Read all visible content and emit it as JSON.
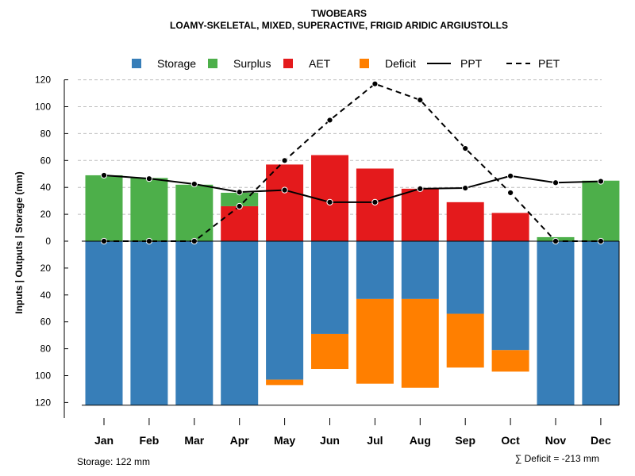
{
  "chart_data": {
    "type": "bar",
    "title": "TWOBEARS",
    "subtitle": "LOAMY-SKELETAL, MIXED, SUPERACTIVE, FRIGID ARIDIC ARGIUSTOLLS",
    "ylabel": "Inputs | Outputs | Storage    (mm)",
    "ylim": [
      -122,
      120
    ],
    "yticks": [
      {
        "value": 120,
        "label": "120"
      },
      {
        "value": 100,
        "label": "100"
      },
      {
        "value": 80,
        "label": "80"
      },
      {
        "value": 60,
        "label": "60"
      },
      {
        "value": 40,
        "label": "40"
      },
      {
        "value": 20,
        "label": "20"
      },
      {
        "value": 0,
        "label": "0"
      },
      {
        "value": -20,
        "label": "20"
      },
      {
        "value": -40,
        "label": "40"
      },
      {
        "value": -60,
        "label": "60"
      },
      {
        "value": -80,
        "label": "80"
      },
      {
        "value": -100,
        "label": "100"
      },
      {
        "value": -120,
        "label": "120"
      }
    ],
    "categories": [
      "Jan",
      "Feb",
      "Mar",
      "Apr",
      "May",
      "Jun",
      "Jul",
      "Aug",
      "Sep",
      "Oct",
      "Nov",
      "Dec"
    ],
    "series": [
      {
        "name": "Storage",
        "kind": "bar-below",
        "color": "#377EB8",
        "values": [
          122,
          122,
          122,
          122,
          103,
          69,
          43,
          43,
          54,
          81,
          122,
          122
        ]
      },
      {
        "name": "Surplus",
        "kind": "bar-above",
        "color": "#4DAF4A",
        "values": [
          49,
          47,
          42,
          10,
          0,
          0,
          0,
          0,
          0,
          0,
          3,
          45
        ]
      },
      {
        "name": "AET",
        "kind": "bar-above",
        "color": "#E41A1C",
        "values": [
          0,
          0,
          0,
          26,
          57,
          64,
          54,
          39,
          29,
          21,
          0,
          0
        ]
      },
      {
        "name": "Deficit",
        "kind": "bar-below",
        "color": "#FF7F00",
        "values": [
          0,
          0,
          0,
          0,
          4,
          26,
          63,
          66,
          40,
          16,
          0,
          0
        ]
      },
      {
        "name": "PPT",
        "kind": "line-solid",
        "color": "#000000",
        "values": [
          49,
          46.5,
          42.5,
          36.5,
          38,
          29,
          29,
          39,
          39.5,
          48.5,
          43.5,
          44.5
        ]
      },
      {
        "name": "PET",
        "kind": "line-dashed",
        "color": "#000000",
        "values": [
          0,
          0,
          0,
          26,
          60,
          90,
          117,
          105,
          69,
          36,
          0,
          0
        ]
      }
    ],
    "legend": [
      "Storage",
      "Surplus",
      "AET",
      "Deficit",
      "PPT",
      "PET"
    ],
    "legend_position": "top",
    "grid": "horizontal-dashed",
    "storage_note": "Storage: 122 mm",
    "deficit_note": "∑ Deficit = -213 mm"
  }
}
